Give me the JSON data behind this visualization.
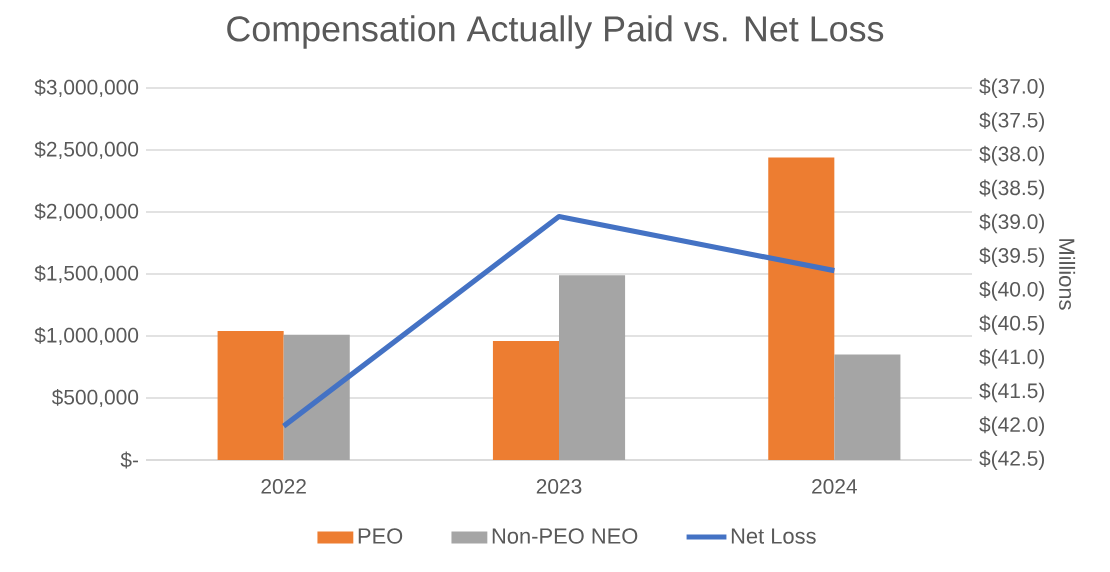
{
  "chart_data": {
    "type": "bar",
    "title": "Compensation Actually Paid vs. Net Loss",
    "categories": [
      "2022",
      "2023",
      "2024"
    ],
    "series": [
      {
        "name": "PEO",
        "color": "#ed7d31",
        "values": [
          1040000,
          960000,
          2440000
        ]
      },
      {
        "name": "Non-PEO NEO",
        "color": "#a5a5a5",
        "values": [
          1010000,
          1490000,
          850000
        ]
      },
      {
        "name": "Net Loss",
        "type": "line",
        "axis": "y2",
        "color": "#4472c4",
        "values": [
          -42.0,
          -38.9,
          -39.7
        ]
      }
    ],
    "ylim": [
      0,
      3000000
    ],
    "yticks": [
      {
        "value": 0,
        "label": "$-"
      },
      {
        "value": 500000,
        "label": "$500,000"
      },
      {
        "value": 1000000,
        "label": "$1,000,000"
      },
      {
        "value": 1500000,
        "label": "$1,500,000"
      },
      {
        "value": 2000000,
        "label": "$2,000,000"
      },
      {
        "value": 2500000,
        "label": "$2,500,000"
      },
      {
        "value": 3000000,
        "label": "$3,000,000"
      }
    ],
    "y2label": "Millions",
    "y2lim": [
      -42.5,
      -37.0
    ],
    "y2ticks": [
      {
        "value": -42.5,
        "label": "$(42.5)"
      },
      {
        "value": -42.0,
        "label": "$(42.0)"
      },
      {
        "value": -41.5,
        "label": "$(41.5)"
      },
      {
        "value": -41.0,
        "label": "$(41.0)"
      },
      {
        "value": -40.5,
        "label": "$(40.5)"
      },
      {
        "value": -40.0,
        "label": "$(40.0)"
      },
      {
        "value": -39.5,
        "label": "$(39.5)"
      },
      {
        "value": -39.0,
        "label": "$(39.0)"
      },
      {
        "value": -38.5,
        "label": "$(38.5)"
      },
      {
        "value": -38.0,
        "label": "$(38.0)"
      },
      {
        "value": -37.5,
        "label": "$(37.5)"
      },
      {
        "value": -37.0,
        "label": "$(37.0)"
      }
    ],
    "grid": "y",
    "legend": "bottom"
  }
}
